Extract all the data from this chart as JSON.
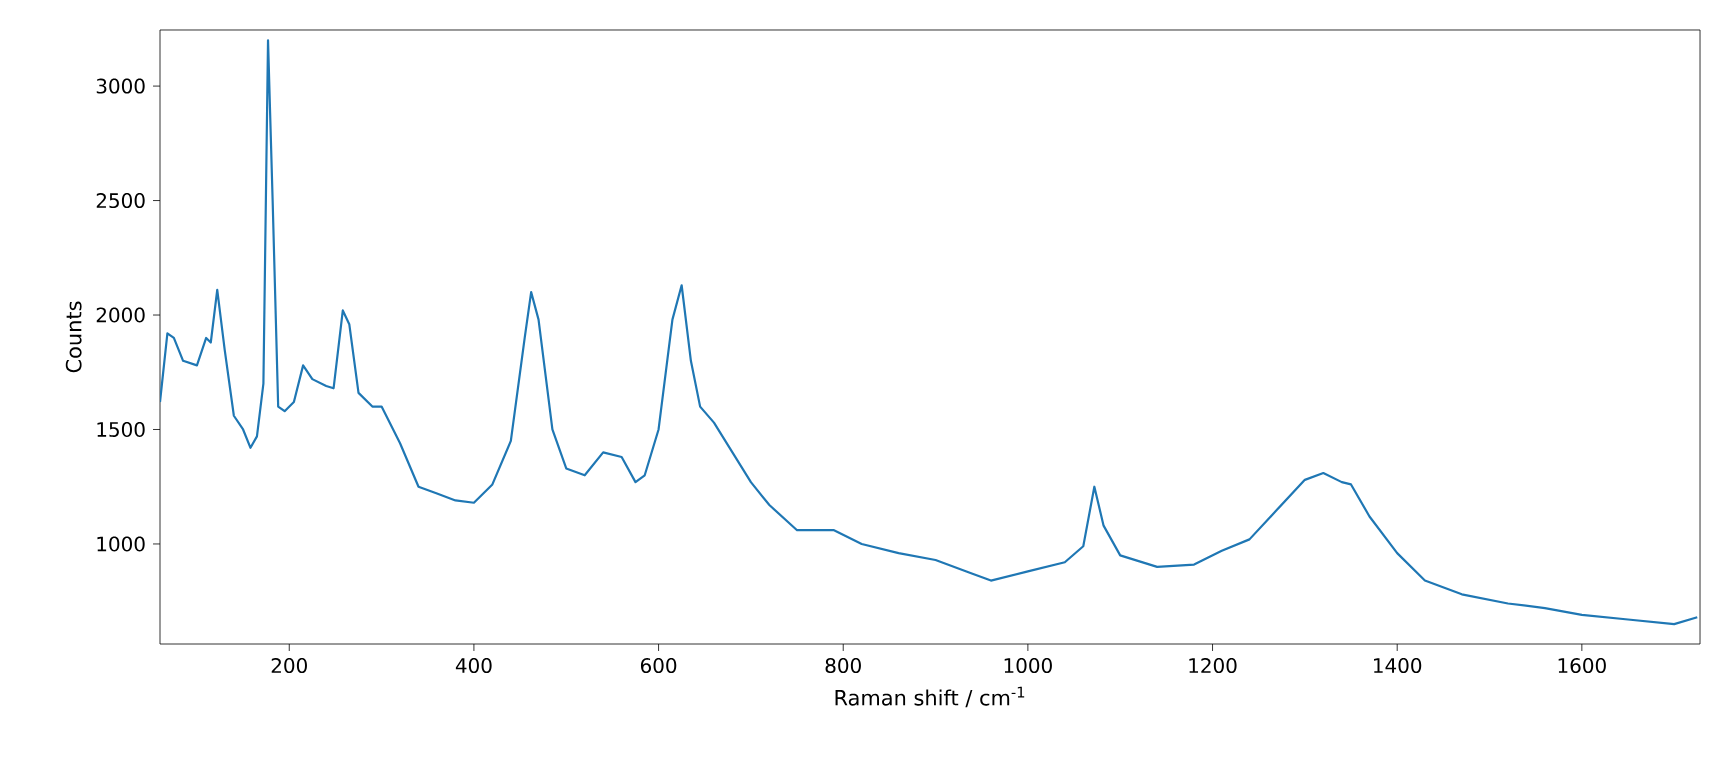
{
  "chart_data": {
    "type": "line",
    "xlabel": "Raman shift / cm$^{-1}$",
    "ylabel": "Counts",
    "xlim": [
      60,
      1728
    ],
    "ylim": [
      563,
      3245
    ],
    "xticks": [
      200,
      400,
      600,
      800,
      1000,
      1200,
      1400,
      1600
    ],
    "yticks": [
      1000,
      1500,
      2000,
      2500,
      3000
    ],
    "grid": false,
    "marker": "none",
    "line_style": "solid",
    "series": [
      {
        "color": "#1f77b4",
        "x": [
          60,
          68,
          75,
          85,
          100,
          110,
          115,
          122,
          130,
          140,
          150,
          158,
          165,
          172,
          177,
          182,
          188,
          195,
          205,
          215,
          225,
          240,
          248,
          258,
          265,
          275,
          290,
          300,
          320,
          340,
          360,
          380,
          400,
          420,
          440,
          455,
          462,
          470,
          485,
          500,
          520,
          540,
          560,
          575,
          585,
          600,
          615,
          625,
          635,
          645,
          660,
          680,
          700,
          720,
          750,
          790,
          820,
          860,
          900,
          940,
          960,
          1000,
          1040,
          1060,
          1072,
          1082,
          1100,
          1140,
          1180,
          1210,
          1240,
          1270,
          1300,
          1320,
          1340,
          1350,
          1370,
          1400,
          1430,
          1470,
          1520,
          1560,
          1600,
          1650,
          1700,
          1725
        ],
        "values": [
          1620,
          1920,
          1900,
          1800,
          1780,
          1900,
          1880,
          2110,
          1850,
          1560,
          1500,
          1420,
          1470,
          1700,
          3200,
          2500,
          1600,
          1580,
          1620,
          1780,
          1720,
          1690,
          1680,
          2020,
          1960,
          1660,
          1600,
          1600,
          1440,
          1250,
          1220,
          1190,
          1180,
          1260,
          1450,
          1900,
          2100,
          1980,
          1500,
          1330,
          1300,
          1400,
          1380,
          1270,
          1300,
          1500,
          1980,
          2130,
          1800,
          1600,
          1530,
          1400,
          1270,
          1170,
          1060,
          1060,
          1000,
          960,
          930,
          870,
          840,
          880,
          920,
          990,
          1250,
          1080,
          950,
          900,
          910,
          970,
          1020,
          1150,
          1280,
          1310,
          1270,
          1260,
          1120,
          960,
          840,
          780,
          740,
          720,
          690,
          670,
          650,
          680
        ]
      }
    ]
  }
}
